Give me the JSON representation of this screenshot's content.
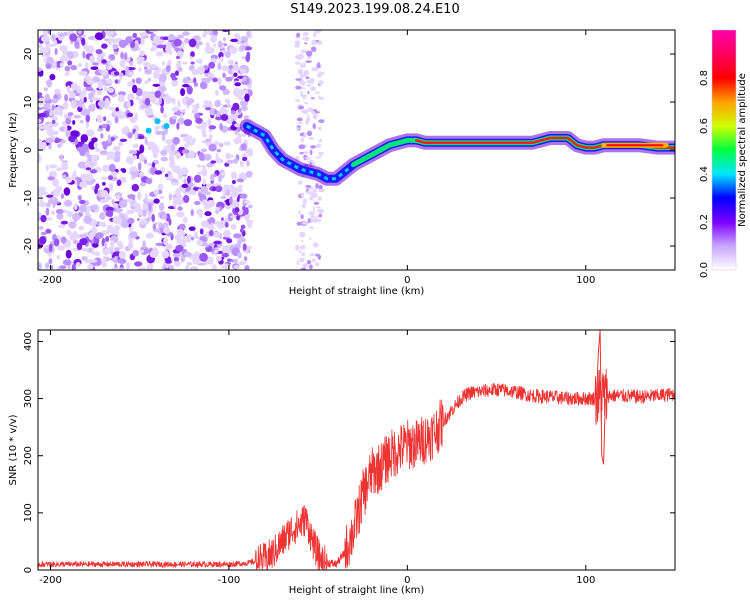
{
  "title": "S149.2023.199.08.24.E10",
  "colors": {
    "snr_line": "#ee3333",
    "axis": "#000000",
    "background": "#ffffff",
    "spectrogram_low": "#c9b3ff",
    "spectrogram_mid": "#6a1fe0",
    "spectrogram_high": "#ff0000"
  },
  "chart_data": [
    {
      "type": "heatmap",
      "title": "",
      "xlabel": "Height of straight line (km)",
      "ylabel": "Frequency (Hz)",
      "xlim": [
        -207,
        150
      ],
      "ylim": [
        -25,
        25
      ],
      "x_ticks": [
        -200,
        -100,
        0,
        100
      ],
      "y_ticks": [
        -20,
        -10,
        0,
        10,
        20
      ],
      "colorbar": {
        "label": "Normalized spectral amplitude",
        "range": [
          0,
          1
        ],
        "ticks": [
          "0.0",
          "0.2",
          "0.4",
          "0.6",
          "0.8"
        ],
        "colormap": [
          "#ffffff",
          "#c8a6ff",
          "#7b00ff",
          "#0000ff",
          "#00e5ff",
          "#00ff40",
          "#d0ff00",
          "#ffa000",
          "#ff0000",
          "#ff0060",
          "#ff00aa"
        ]
      },
      "ridge": [
        {
          "x": -90,
          "y": 5
        },
        {
          "x": -85,
          "y": 4
        },
        {
          "x": -80,
          "y": 3
        },
        {
          "x": -75,
          "y": 0
        },
        {
          "x": -70,
          "y": -2
        },
        {
          "x": -65,
          "y": -3
        },
        {
          "x": -60,
          "y": -4
        },
        {
          "x": -55,
          "y": -4.5
        },
        {
          "x": -50,
          "y": -5
        },
        {
          "x": -45,
          "y": -6
        },
        {
          "x": -40,
          "y": -6
        },
        {
          "x": -35,
          "y": -4.5
        },
        {
          "x": -30,
          "y": -3
        },
        {
          "x": -25,
          "y": -2
        },
        {
          "x": -20,
          "y": -1
        },
        {
          "x": -15,
          "y": 0
        },
        {
          "x": -10,
          "y": 1
        },
        {
          "x": -5,
          "y": 1.5
        },
        {
          "x": 0,
          "y": 2
        },
        {
          "x": 5,
          "y": 2
        },
        {
          "x": 10,
          "y": 1.5
        },
        {
          "x": 20,
          "y": 1.5
        },
        {
          "x": 40,
          "y": 1.5
        },
        {
          "x": 60,
          "y": 1.5
        },
        {
          "x": 70,
          "y": 1.5
        },
        {
          "x": 80,
          "y": 2.5
        },
        {
          "x": 90,
          "y": 2.5
        },
        {
          "x": 95,
          "y": 1
        },
        {
          "x": 100,
          "y": 0.5
        },
        {
          "x": 105,
          "y": 0.5
        },
        {
          "x": 110,
          "y": 1
        },
        {
          "x": 120,
          "y": 1
        },
        {
          "x": 130,
          "y": 1
        },
        {
          "x": 140,
          "y": 0.5
        },
        {
          "x": 150,
          "y": 0.5
        }
      ]
    },
    {
      "type": "line",
      "title": "",
      "xlabel": "Height of straight line (km)",
      "ylabel": "SNR (10 * v/v)",
      "xlim": [
        -207,
        150
      ],
      "ylim": [
        0,
        420
      ],
      "x_ticks": [
        -200,
        -100,
        0,
        100
      ],
      "y_ticks": [
        0,
        100,
        200,
        300,
        400
      ],
      "series": [
        {
          "points": [
            {
              "x": -207,
              "y": 10
            },
            {
              "x": -180,
              "y": 10
            },
            {
              "x": -150,
              "y": 10
            },
            {
              "x": -120,
              "y": 10
            },
            {
              "x": -100,
              "y": 10
            },
            {
              "x": -90,
              "y": 12
            },
            {
              "x": -80,
              "y": 18
            },
            {
              "x": -75,
              "y": 30
            },
            {
              "x": -70,
              "y": 50
            },
            {
              "x": -65,
              "y": 70
            },
            {
              "x": -60,
              "y": 80
            },
            {
              "x": -57,
              "y": 90
            },
            {
              "x": -55,
              "y": 70
            },
            {
              "x": -52,
              "y": 40
            },
            {
              "x": -48,
              "y": 15
            },
            {
              "x": -40,
              "y": 10
            },
            {
              "x": -35,
              "y": 30
            },
            {
              "x": -30,
              "y": 70
            },
            {
              "x": -25,
              "y": 130
            },
            {
              "x": -20,
              "y": 170
            },
            {
              "x": -15,
              "y": 180
            },
            {
              "x": -10,
              "y": 200
            },
            {
              "x": -5,
              "y": 210
            },
            {
              "x": 0,
              "y": 220
            },
            {
              "x": 5,
              "y": 220
            },
            {
              "x": 10,
              "y": 230
            },
            {
              "x": 15,
              "y": 240
            },
            {
              "x": 20,
              "y": 260
            },
            {
              "x": 25,
              "y": 280
            },
            {
              "x": 30,
              "y": 300
            },
            {
              "x": 35,
              "y": 310
            },
            {
              "x": 40,
              "y": 312
            },
            {
              "x": 50,
              "y": 316
            },
            {
              "x": 60,
              "y": 312
            },
            {
              "x": 70,
              "y": 305
            },
            {
              "x": 80,
              "y": 303
            },
            {
              "x": 90,
              "y": 300
            },
            {
              "x": 100,
              "y": 300
            },
            {
              "x": 105,
              "y": 300
            },
            {
              "x": 110,
              "y": 305
            },
            {
              "x": 120,
              "y": 305
            },
            {
              "x": 130,
              "y": 303
            },
            {
              "x": 140,
              "y": 305
            },
            {
              "x": 150,
              "y": 308
            }
          ]
        }
      ]
    }
  ]
}
